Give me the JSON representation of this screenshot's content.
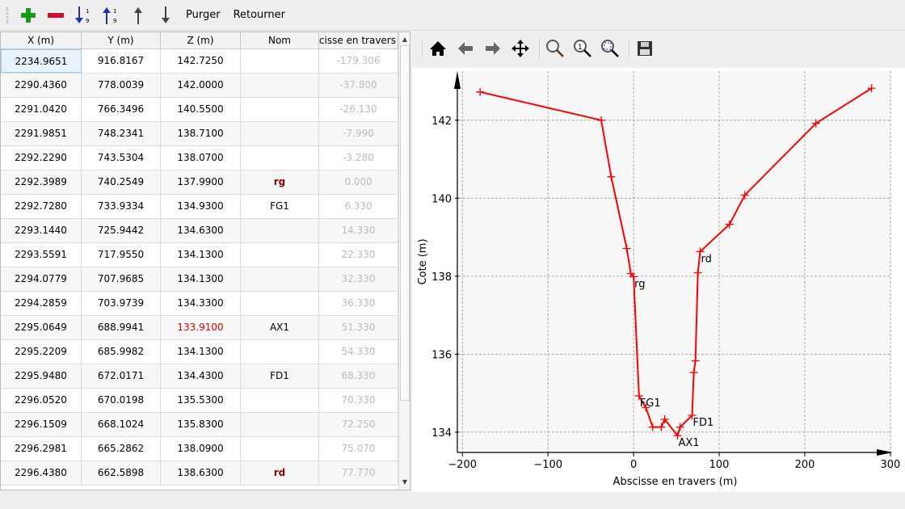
{
  "toolbar": {
    "items": [
      {
        "icon": "add-icon",
        "color": "#1a9a1a"
      },
      {
        "icon": "remove-icon",
        "color": "#cc1030"
      },
      {
        "icon": "sort-ascending-icon"
      },
      {
        "icon": "sort-descending-icon"
      },
      {
        "icon": "move-up-icon"
      },
      {
        "icon": "move-down-icon"
      }
    ],
    "purge_label": "Purger",
    "reverse_label": "Retourner"
  },
  "table": {
    "columns": [
      "X (m)",
      "Y (m)",
      "Z (m)",
      "Nom",
      "Abscisse en travers"
    ],
    "rows": [
      [
        "2234.9651",
        "916.8167",
        "142.7250",
        "",
        "-179.306"
      ],
      [
        "2290.4360",
        "778.0039",
        "142.0000",
        "",
        "-37.800"
      ],
      [
        "2291.0420",
        "766.3496",
        "140.5500",
        "",
        "-26.130"
      ],
      [
        "2291.9851",
        "748.2341",
        "138.7100",
        "",
        "-7.990"
      ],
      [
        "2292.2290",
        "743.5304",
        "138.0700",
        "",
        "-3.280"
      ],
      [
        "2292.3989",
        "740.2549",
        "137.9900",
        "rg",
        "0.000"
      ],
      [
        "2292.7280",
        "733.9334",
        "134.9300",
        "FG1",
        "6.330"
      ],
      [
        "2293.1440",
        "725.9442",
        "134.6300",
        "",
        "14.330"
      ],
      [
        "2293.5591",
        "717.9550",
        "134.1300",
        "",
        "22.330"
      ],
      [
        "2294.0779",
        "707.9685",
        "134.1300",
        "",
        "32.330"
      ],
      [
        "2294.2859",
        "703.9739",
        "134.3300",
        "",
        "36.330"
      ],
      [
        "2295.0649",
        "688.9941",
        "133.9100",
        "AX1",
        "51.330"
      ],
      [
        "2295.2209",
        "685.9982",
        "134.1300",
        "",
        "54.330"
      ],
      [
        "2295.9480",
        "672.0171",
        "134.4300",
        "FD1",
        "68.330"
      ],
      [
        "2296.0520",
        "670.0198",
        "135.5300",
        "",
        "70.330"
      ],
      [
        "2296.1509",
        "668.1024",
        "135.8300",
        "",
        "72.250"
      ],
      [
        "2296.2981",
        "665.2862",
        "138.0900",
        "",
        "75.070"
      ],
      [
        "2296.4380",
        "662.5898",
        "138.6300",
        "rd",
        "77.770"
      ]
    ]
  },
  "plot_toolbar": [
    "home-icon",
    "back-icon",
    "forward-icon",
    "pan-icon",
    "zoom-icon",
    "zoom-1-icon",
    "zoom-fit-icon",
    "save-icon"
  ],
  "chart_data": {
    "type": "line",
    "xlabel": "Abscisse en travers (m)",
    "ylabel": "Cote (m)",
    "color": "#ff0000",
    "marker": "+",
    "grid": true,
    "xlim": [
      -204,
      301
    ],
    "ylim": [
      133.48,
      143.26
    ],
    "xticks": [
      -200,
      -100,
      0,
      100,
      200,
      300
    ],
    "xtick_labels": [
      "−200",
      "−100",
      "0",
      "100",
      "200",
      "300"
    ],
    "yticks": [
      134,
      136,
      138,
      140,
      142
    ],
    "ytick_labels": [
      "134",
      "136",
      "138",
      "140",
      "142"
    ],
    "x": [
      -179.306,
      -37.8,
      -26.13,
      -7.99,
      -3.28,
      0,
      6.33,
      14.33,
      22.33,
      32.33,
      36.33,
      51.33,
      54.33,
      68.33,
      70.33,
      72.25,
      75.07,
      77.77,
      112,
      130,
      213,
      278
    ],
    "y": [
      142.725,
      142.0,
      140.55,
      138.71,
      138.07,
      137.99,
      134.93,
      134.63,
      134.13,
      134.13,
      134.33,
      133.91,
      134.13,
      134.43,
      135.53,
      135.83,
      138.09,
      138.63,
      139.33,
      140.08,
      141.92,
      142.82
    ],
    "annotations": [
      {
        "text": "rg",
        "x": 0,
        "y": 137.99
      },
      {
        "text": "FG1",
        "x": 6.33,
        "y": 134.93
      },
      {
        "text": "AX1",
        "x": 51.33,
        "y": 133.91
      },
      {
        "text": "FD1",
        "x": 68.33,
        "y": 134.43
      },
      {
        "text": "rd",
        "x": 77.77,
        "y": 138.63
      }
    ]
  }
}
